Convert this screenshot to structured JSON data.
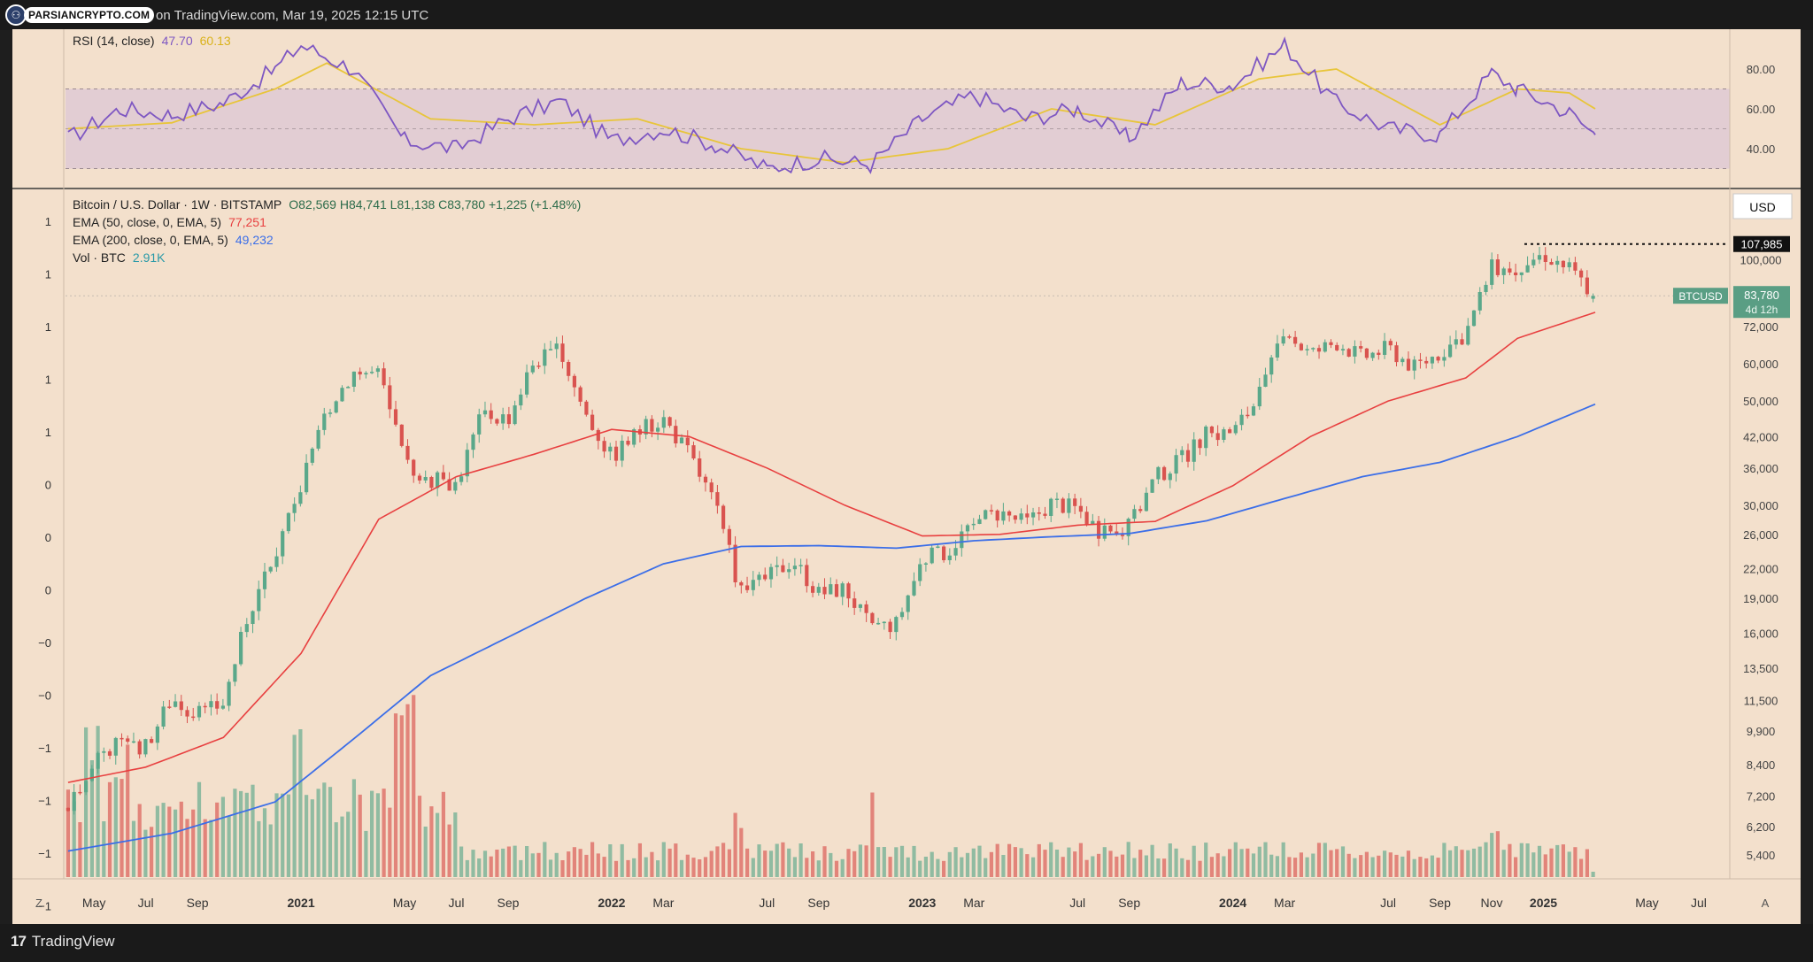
{
  "header": {
    "logo_text": "PARSIANCRYPTO.COM",
    "title_suffix": "on TradingView.com, Mar 19, 2025 12:15 UTC"
  },
  "footer": {
    "brand": "TradingView"
  },
  "legend": {
    "rsi_label": "RSI (14, close)",
    "rsi_value": "47.70",
    "rsi_ma_value": "60.13",
    "symbol": "Bitcoin / U.S. Dollar · 1W · BITSTAMP",
    "ohlc": "O82,569  H84,741  L81,138  C83,780  +1,225 (+1.48%)",
    "ema50_label": "EMA (50, close, 0, EMA, 5)",
    "ema50_value": "77,251",
    "ema200_label": "EMA (200, close, 0, EMA, 5)",
    "ema200_value": "49,232",
    "vol_label": "Vol · BTC",
    "vol_value": "2.91K"
  },
  "price_scale": {
    "currency": "USD",
    "ath_label": "107,985",
    "ticker": "BTCUSD",
    "last_price": "83,780",
    "countdown": "4d 12h"
  },
  "left_scale_labels": [
    "1",
    "1",
    "1",
    "1",
    "1",
    "0",
    "0",
    "0",
    "−0",
    "−0",
    "−1",
    "−1",
    "−1",
    "−1"
  ],
  "time_labels": [
    "May",
    "Jul",
    "Sep",
    "2021",
    "May",
    "Jul",
    "Sep",
    "2022",
    "Mar",
    "Jul",
    "Sep",
    "2023",
    "Mar",
    "Jul",
    "Sep",
    "2024",
    "Mar",
    "Jul",
    "Sep",
    "Nov",
    "2025",
    "May",
    "Jul"
  ],
  "corner_labels": {
    "left": "Z",
    "right": "A"
  },
  "colors": {
    "bg": "#f3e0cc",
    "up": "#5aa88a",
    "down": "#d9534f",
    "ema50": "#e84040",
    "ema200": "#3b6ee8",
    "rsi": "#7e57c2",
    "rsi_ma": "#e8c53a"
  },
  "chart_data": [
    {
      "type": "line",
      "title": "RSI (14, close)",
      "y_scale": "linear",
      "ylim": [
        20,
        100
      ],
      "y_ticks": [
        40,
        60,
        80
      ],
      "bands": {
        "upper": 70,
        "middle": 50,
        "lower": 30
      },
      "series": [
        {
          "name": "RSI (14, close)",
          "x": [
            "2020-04",
            "2020-06",
            "2020-08",
            "2020-10",
            "2020-12",
            "2021-01",
            "2021-03",
            "2021-05",
            "2021-07",
            "2021-09",
            "2021-11",
            "2022-01",
            "2022-03",
            "2022-05",
            "2022-07",
            "2022-09",
            "2022-11",
            "2023-01",
            "2023-03",
            "2023-05",
            "2023-07",
            "2023-09",
            "2023-11",
            "2024-01",
            "2024-03",
            "2024-05",
            "2024-07",
            "2024-09",
            "2024-11",
            "2024-12",
            "2025-02",
            "2025-03"
          ],
          "values": [
            45,
            60,
            57,
            63,
            80,
            92,
            80,
            44,
            40,
            55,
            64,
            44,
            50,
            42,
            30,
            35,
            32,
            55,
            67,
            55,
            60,
            45,
            73,
            72,
            92,
            63,
            50,
            47,
            78,
            70,
            58,
            47
          ]
        },
        {
          "name": "",
          "x": [
            "2020-04",
            "2020-08",
            "2020-12",
            "2021-02",
            "2021-06",
            "2021-10",
            "2022-02",
            "2022-06",
            "2022-10",
            "2023-02",
            "2023-06",
            "2023-10",
            "2024-02",
            "2024-05",
            "2024-09",
            "2024-12",
            "2025-02",
            "2025-03"
          ],
          "values": [
            50,
            53,
            70,
            83,
            55,
            52,
            55,
            40,
            33,
            40,
            60,
            52,
            75,
            80,
            52,
            70,
            68,
            60
          ]
        }
      ]
    },
    {
      "type": "candlestick",
      "title": "Bitcoin / U.S. Dollar · 1W · BITSTAMP",
      "y_scale": "log",
      "ylim": [
        4800,
        130000
      ],
      "y_ticks": [
        5400,
        6200,
        7200,
        8400,
        9900,
        11500,
        13500,
        16000,
        19000,
        22000,
        26000,
        30000,
        36000,
        42000,
        50000,
        60000,
        72000,
        100000
      ],
      "x_ticks": [
        "May",
        "Jul",
        "Sep",
        "2021",
        "May",
        "Jul",
        "Sep",
        "2022",
        "Mar",
        "Jul",
        "Sep",
        "2023",
        "Mar",
        "Jul",
        "Sep",
        "2024",
        "Mar",
        "Jul",
        "Sep",
        "Nov",
        "2025",
        "May",
        "Jul"
      ],
      "path": [
        [
          "2020-04",
          6800
        ],
        [
          "2020-05",
          8800
        ],
        [
          "2020-06",
          9400
        ],
        [
          "2020-07",
          9200
        ],
        [
          "2020-08",
          11700
        ],
        [
          "2020-09",
          10700
        ],
        [
          "2020-10",
          11400
        ],
        [
          "2020-11",
          18000
        ],
        [
          "2020-12",
          23000
        ],
        [
          "2021-01",
          33000
        ],
        [
          "2021-02",
          48000
        ],
        [
          "2021-03",
          58000
        ],
        [
          "2021-04",
          57000
        ],
        [
          "2021-05",
          37000
        ],
        [
          "2021-06",
          34000
        ],
        [
          "2021-07",
          33500
        ],
        [
          "2021-08",
          47000
        ],
        [
          "2021-09",
          46000
        ],
        [
          "2021-10",
          61000
        ],
        [
          "2021-11",
          64000
        ],
        [
          "2021-12",
          47000
        ],
        [
          "2022-01",
          38000
        ],
        [
          "2022-02",
          43000
        ],
        [
          "2022-03",
          46000
        ],
        [
          "2022-04",
          38500
        ],
        [
          "2022-05",
          30000
        ],
        [
          "2022-06",
          19500
        ],
        [
          "2022-07",
          21000
        ],
        [
          "2022-08",
          23000
        ],
        [
          "2022-09",
          19500
        ],
        [
          "2022-10",
          20000
        ],
        [
          "2022-11",
          16500
        ],
        [
          "2022-12",
          16800
        ],
        [
          "2023-01",
          23000
        ],
        [
          "2023-02",
          24000
        ],
        [
          "2023-03",
          28000
        ],
        [
          "2023-04",
          29000
        ],
        [
          "2023-05",
          27500
        ],
        [
          "2023-06",
          30500
        ],
        [
          "2023-07",
          29500
        ],
        [
          "2023-08",
          26000
        ],
        [
          "2023-09",
          27000
        ],
        [
          "2023-10",
          34500
        ],
        [
          "2023-11",
          37500
        ],
        [
          "2023-12",
          42500
        ],
        [
          "2024-01",
          43000
        ],
        [
          "2024-02",
          51000
        ],
        [
          "2024-03",
          70000
        ],
        [
          "2024-04",
          63000
        ],
        [
          "2024-05",
          67000
        ],
        [
          "2024-06",
          62000
        ],
        [
          "2024-07",
          65000
        ],
        [
          "2024-08",
          59000
        ],
        [
          "2024-09",
          63500
        ],
        [
          "2024-10",
          70000
        ],
        [
          "2024-11",
          96000
        ],
        [
          "2024-12",
          97000
        ],
        [
          "2025-01",
          103000
        ],
        [
          "2025-02",
          96000
        ],
        [
          "2025-03",
          83780
        ]
      ],
      "last": {
        "open": 82569,
        "high": 84741,
        "low": 81138,
        "close": 83780,
        "change": 1225,
        "change_pct": 1.48
      },
      "all_time_high": 107985,
      "series": [
        {
          "name": "EMA (50, close, 0, EMA, 5)",
          "last": 77251,
          "points": [
            [
              "2020-04",
              7700
            ],
            [
              "2020-07",
              8300
            ],
            [
              "2020-10",
              9600
            ],
            [
              "2021-01",
              14500
            ],
            [
              "2021-04",
              28000
            ],
            [
              "2021-07",
              34500
            ],
            [
              "2021-10",
              38500
            ],
            [
              "2022-01",
              43500
            ],
            [
              "2022-04",
              42000
            ],
            [
              "2022-07",
              36000
            ],
            [
              "2022-10",
              30000
            ],
            [
              "2023-01",
              25800
            ],
            [
              "2023-04",
              26000
            ],
            [
              "2023-07",
              27200
            ],
            [
              "2023-10",
              27700
            ],
            [
              "2024-01",
              33000
            ],
            [
              "2024-04",
              42000
            ],
            [
              "2024-07",
              50000
            ],
            [
              "2024-10",
              56000
            ],
            [
              "2024-12",
              68000
            ],
            [
              "2025-03",
              77251
            ]
          ]
        },
        {
          "name": "EMA (200, close, 0, EMA, 5)",
          "last": 49232,
          "points": [
            [
              "2020-04",
              5500
            ],
            [
              "2020-08",
              6000
            ],
            [
              "2020-12",
              7000
            ],
            [
              "2021-03",
              9500
            ],
            [
              "2021-06",
              13000
            ],
            [
              "2021-09",
              15700
            ],
            [
              "2021-12",
              19000
            ],
            [
              "2022-03",
              22500
            ],
            [
              "2022-06",
              24500
            ],
            [
              "2022-09",
              24600
            ],
            [
              "2022-12",
              24300
            ],
            [
              "2023-03",
              25200
            ],
            [
              "2023-06",
              25700
            ],
            [
              "2023-09",
              26100
            ],
            [
              "2023-12",
              27800
            ],
            [
              "2024-03",
              31000
            ],
            [
              "2024-06",
              34500
            ],
            [
              "2024-09",
              37000
            ],
            [
              "2024-12",
              42000
            ],
            [
              "2025-03",
              49232
            ]
          ]
        }
      ]
    },
    {
      "type": "bar",
      "title": "Vol · BTC",
      "last": 2910,
      "units": "BTC"
    }
  ]
}
